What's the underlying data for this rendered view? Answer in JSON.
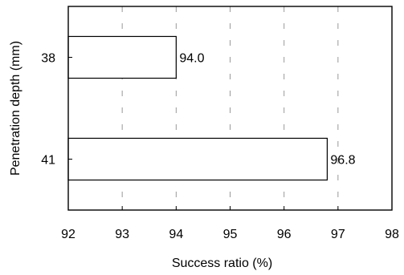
{
  "chart_data": {
    "type": "bar",
    "orientation": "horizontal",
    "categories": [
      "38",
      "41"
    ],
    "values": [
      94.0,
      96.8
    ],
    "data_labels": [
      "94.0",
      "96.8"
    ],
    "title": "",
    "xlabel": "Success ratio (%)",
    "ylabel": "Penetration depth (mm)",
    "xlim": [
      92,
      98
    ],
    "x_ticks": [
      "92",
      "93",
      "94",
      "95",
      "96",
      "97",
      "98"
    ],
    "grid": "vertical dashed",
    "legend": "none",
    "colors": {
      "bar_fill": "#ffffff",
      "bar_edge": "#000000",
      "grid": "#999999"
    }
  }
}
